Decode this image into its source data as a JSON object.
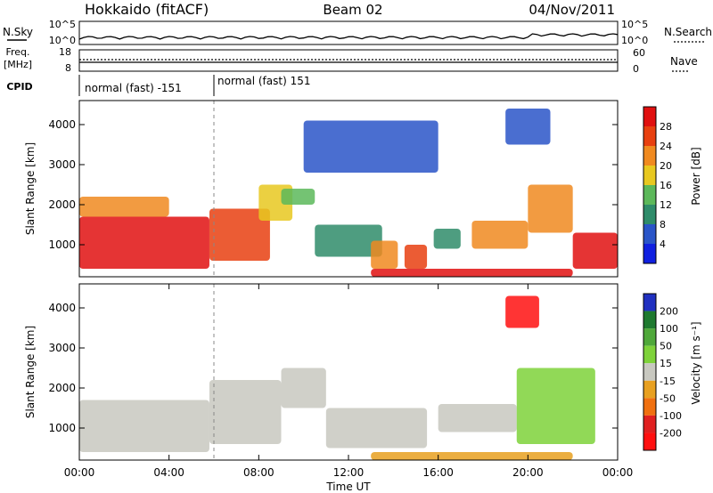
{
  "header": {
    "title": "Hokkaido (fitACF)",
    "beam": "Beam 02",
    "date": "04/Nov/2011"
  },
  "strip": {
    "nsky_label": "N.Sky",
    "nsky_ticks": [
      "10^5",
      "10^0"
    ],
    "nsearch_label": "N.Search",
    "nsearch_ticks": [
      "10^5",
      "10^0"
    ],
    "freq_label": "Freq.",
    "freq_unit": "[MHz]",
    "freq_ticks": [
      "18",
      "8"
    ],
    "nave_label": "Nave",
    "nave_ticks": [
      "60",
      "0"
    ],
    "cpid_label": "CPID",
    "cpid_segments": [
      "normal (fast) -151",
      "normal (fast) 151"
    ]
  },
  "chart_data": [
    {
      "type": "heatmap",
      "name": "power",
      "ylabel": "Slant Range [km]",
      "yticks": [
        "1000",
        "2000",
        "3000",
        "4000"
      ],
      "ylim": [
        200,
        4600
      ],
      "xlim": [
        0,
        24
      ],
      "colorbar_label": "Power [dB]",
      "colorbar_ticks": [
        "4",
        "8",
        "12",
        "16",
        "20",
        "24",
        "28"
      ],
      "colors": [
        "#1020e0",
        "#2a55c8",
        "#2f8c6a",
        "#5cb85a",
        "#e8c820",
        "#f08a20",
        "#e84010",
        "#e01010"
      ],
      "regions": [
        {
          "t0": 0.0,
          "t1": 5.8,
          "r0": 400,
          "r1": 1700,
          "value": 28
        },
        {
          "t0": 0.0,
          "t1": 4.0,
          "r0": 1700,
          "r1": 2200,
          "value": 22
        },
        {
          "t0": 5.8,
          "t1": 8.5,
          "r0": 600,
          "r1": 1900,
          "value": 24
        },
        {
          "t0": 8.0,
          "t1": 9.5,
          "r0": 1600,
          "r1": 2500,
          "value": 18
        },
        {
          "t0": 9.0,
          "t1": 10.5,
          "r0": 2000,
          "r1": 2400,
          "value": 14
        },
        {
          "t0": 10.5,
          "t1": 13.5,
          "r0": 700,
          "r1": 1500,
          "value": 12
        },
        {
          "t0": 13.0,
          "t1": 14.2,
          "r0": 400,
          "r1": 1100,
          "value": 20
        },
        {
          "t0": 14.5,
          "t1": 15.5,
          "r0": 400,
          "r1": 1000,
          "value": 26
        },
        {
          "t0": 13.0,
          "t1": 22.0,
          "r0": 200,
          "r1": 400,
          "value": 28
        },
        {
          "t0": 15.8,
          "t1": 17.0,
          "r0": 900,
          "r1": 1400,
          "value": 10
        },
        {
          "t0": 17.5,
          "t1": 20.0,
          "r0": 900,
          "r1": 1600,
          "value": 20
        },
        {
          "t0": 20.0,
          "t1": 22.0,
          "r0": 1300,
          "r1": 2500,
          "value": 22
        },
        {
          "t0": 22.0,
          "t1": 24.0,
          "r0": 400,
          "r1": 1300,
          "value": 28
        },
        {
          "t0": 10.0,
          "t1": 16.0,
          "r0": 2800,
          "r1": 4100,
          "value": 8
        },
        {
          "t0": 19.0,
          "t1": 21.0,
          "r0": 3500,
          "r1": 4400,
          "value": 6
        }
      ]
    },
    {
      "type": "heatmap",
      "name": "velocity",
      "ylabel": "Slant Range [km]",
      "yticks": [
        "1000",
        "2000",
        "3000",
        "4000"
      ],
      "ylim": [
        200,
        4600
      ],
      "xlim": [
        0,
        24
      ],
      "xticks": [
        "00:00",
        "04:00",
        "08:00",
        "12:00",
        "16:00",
        "20:00",
        "00:00"
      ],
      "xlabel": "Time UT",
      "colorbar_label": "Velocity [m s⁻¹]",
      "colorbar_ticks": [
        "200",
        "100",
        "50",
        "15",
        "-15",
        "-50",
        "-100",
        "-200"
      ],
      "colors": [
        "#2030c0",
        "#1f7a30",
        "#4fa83a",
        "#7ed23a",
        "#c8c8c0",
        "#e8a020",
        "#f07010",
        "#e02020",
        "#ff1010"
      ],
      "regions": [
        {
          "t0": 0.0,
          "t1": 5.8,
          "r0": 400,
          "r1": 1700,
          "value": 0
        },
        {
          "t0": 5.8,
          "t1": 9.0,
          "r0": 600,
          "r1": 2200,
          "value": 0
        },
        {
          "t0": 9.0,
          "t1": 11.0,
          "r0": 1500,
          "r1": 2500,
          "value": 0
        },
        {
          "t0": 11.0,
          "t1": 15.5,
          "r0": 500,
          "r1": 1500,
          "value": 0
        },
        {
          "t0": 16.0,
          "t1": 19.5,
          "r0": 900,
          "r1": 1600,
          "value": 0
        },
        {
          "t0": 19.5,
          "t1": 23.0,
          "r0": 600,
          "r1": 2500,
          "value": 60
        },
        {
          "t0": 19.0,
          "t1": 20.5,
          "r0": 3500,
          "r1": 4300,
          "value": -200
        },
        {
          "t0": 13.0,
          "t1": 22.0,
          "r0": 200,
          "r1": 400,
          "value": -30
        }
      ]
    }
  ]
}
